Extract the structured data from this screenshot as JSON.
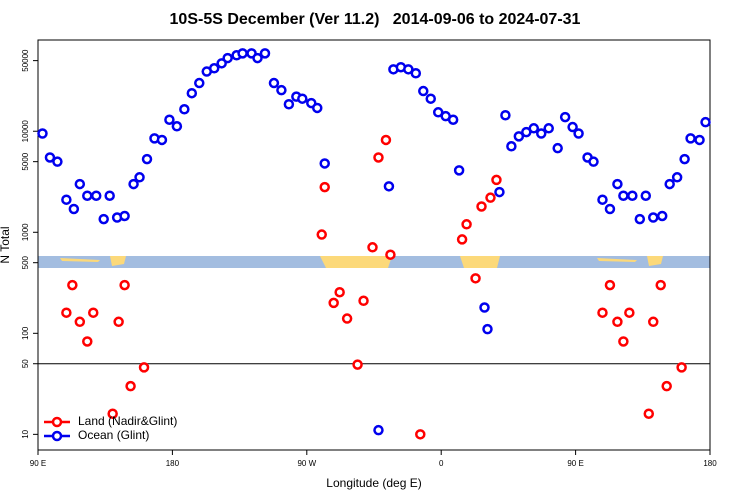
{
  "chart_data": {
    "type": "scatter",
    "title": "10S-5S December (Ver 11.2)   2014-09-06 to 2024-07-31",
    "xlabel": "Longitude (deg E)",
    "ylabel": "N Total",
    "xlim": [
      90,
      540
    ],
    "xticks": [
      {
        "value": 90,
        "label": "90 E"
      },
      180,
      {
        "value": 270,
        "label": "90 W"
      },
      {
        "value": 360,
        "label": "0"
      },
      {
        "value": 450,
        "label": "90 E"
      },
      {
        "value": 540,
        "label": "180"
      }
    ],
    "ylim": [
      7,
      80000
    ],
    "yticks": [
      10,
      50,
      100,
      500,
      1000,
      5000,
      10000,
      50000
    ],
    "log_y": true,
    "hline": 50,
    "legend": "bottom-left",
    "series": [
      {
        "name": "Land (Nadir&Glint)",
        "color": "#ff0000",
        "x": [
          109,
          113,
          118,
          123,
          127,
          140,
          144,
          148,
          152,
          161,
          280,
          282,
          288,
          292,
          297,
          304,
          308,
          314,
          318,
          323,
          326,
          346,
          374,
          377,
          383,
          387,
          393,
          397,
          468,
          473,
          478,
          482,
          486,
          499,
          502,
          507,
          511,
          521
        ],
        "values": [
          160,
          300,
          130,
          83,
          160,
          16,
          130,
          300,
          30,
          46,
          950,
          2800,
          200,
          255,
          140,
          49,
          210,
          710,
          5500,
          8200,
          600,
          10,
          850,
          1200,
          350,
          1800,
          2200,
          3300,
          160,
          300,
          130,
          83,
          160,
          16,
          130,
          300,
          30,
          46
        ]
      },
      {
        "name": "Ocean (Glint)",
        "color": "#0000ee",
        "x": [
          93,
          98,
          103,
          109,
          114,
          118,
          123,
          129,
          134,
          138,
          143,
          148,
          154,
          158,
          163,
          168,
          173,
          178,
          183,
          188,
          193,
          198,
          203,
          208,
          213,
          217,
          223,
          227,
          233,
          237,
          242,
          248,
          253,
          258,
          263,
          267,
          273,
          277,
          282,
          318,
          325,
          328,
          333,
          338,
          343,
          348,
          353,
          358,
          363,
          368,
          372,
          389,
          391,
          399,
          403,
          407,
          412,
          417,
          422,
          427,
          432,
          438,
          443,
          448,
          452,
          458,
          462,
          468,
          473,
          478,
          482,
          488,
          493,
          497,
          502,
          508,
          513,
          518,
          523,
          527,
          533,
          537
        ],
        "values": [
          9500,
          5500,
          5000,
          2100,
          1700,
          3000,
          2300,
          2300,
          1350,
          2300,
          1400,
          1450,
          3000,
          3500,
          5300,
          8500,
          8200,
          13000,
          11200,
          16500,
          23800,
          30000,
          39000,
          42000,
          47000,
          53000,
          56500,
          59000,
          59000,
          53000,
          59000,
          30000,
          25500,
          18500,
          22000,
          21000,
          19000,
          17000,
          4800,
          11,
          2850,
          41000,
          43000,
          41000,
          37500,
          25000,
          21000,
          15400,
          14100,
          13000,
          4100,
          180,
          110,
          2500,
          14400,
          7100,
          8900,
          9800,
          10700,
          9500,
          10700,
          6800,
          13800,
          11000,
          9500,
          5500,
          5000,
          2100,
          1700,
          3000,
          2300,
          2300,
          1350,
          2300,
          1400,
          1450,
          3000,
          3500,
          5300,
          8500,
          8200,
          12300
        ]
      }
    ]
  }
}
